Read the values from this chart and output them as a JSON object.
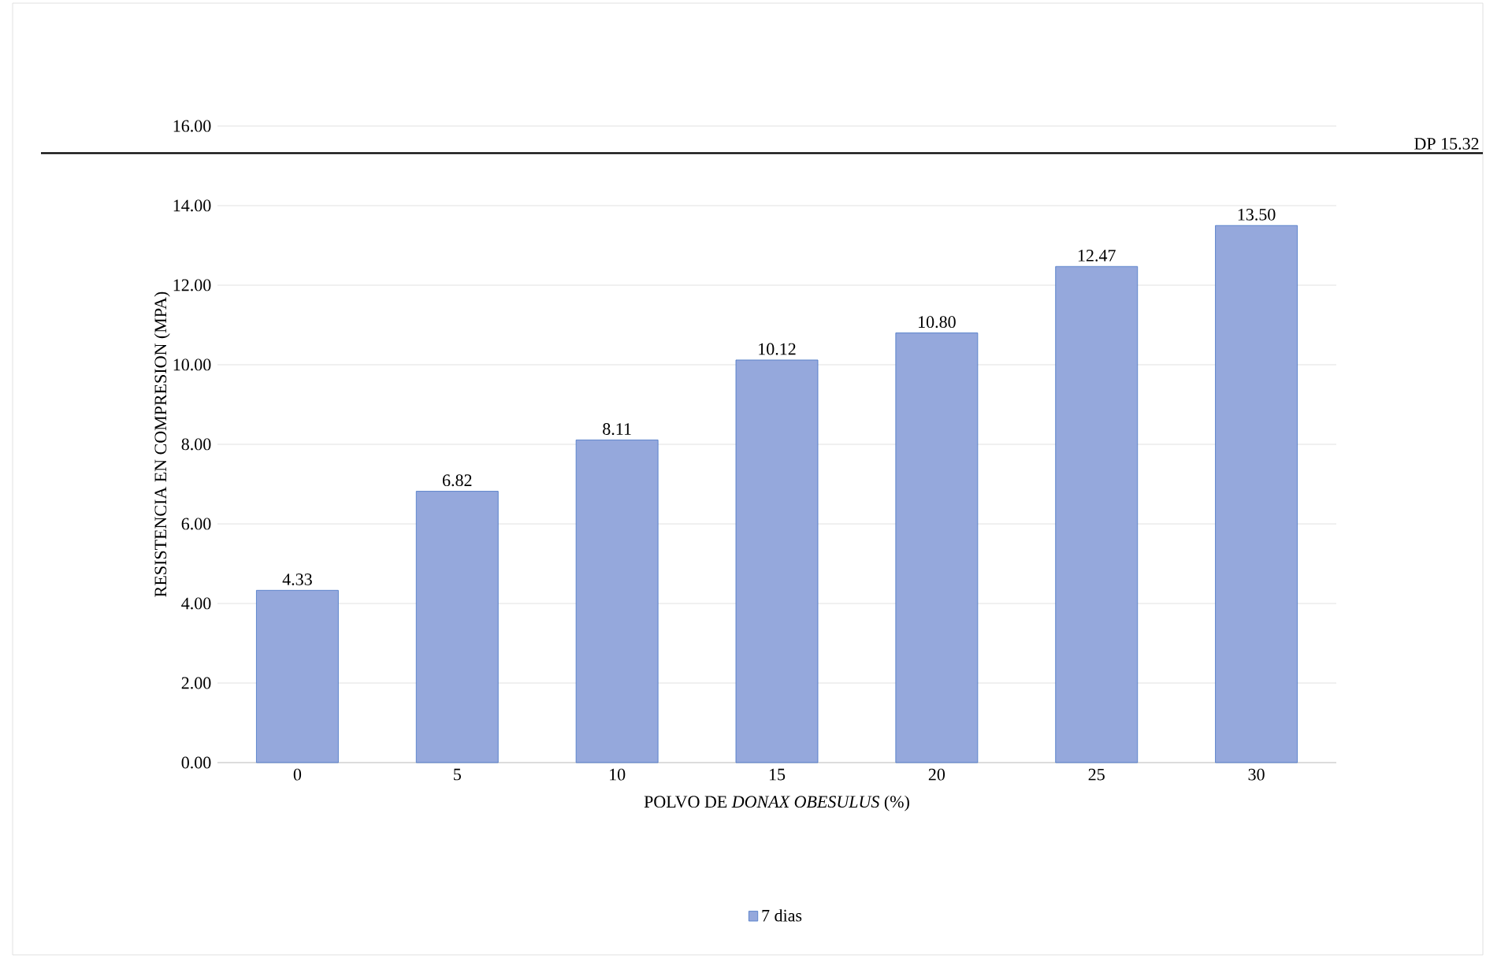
{
  "chart_data": {
    "type": "bar",
    "xlabel": "POLVO DE *DONAX OBESULUS* (%)",
    "ylabel": "RESISTENCIA EN COMPRESION (MPA)",
    "categories": [
      "0",
      "5",
      "10",
      "15",
      "20",
      "25",
      "30"
    ],
    "series": [
      {
        "name": "7 dias",
        "color": "#95a8dc",
        "values": [
          4.33,
          6.82,
          8.11,
          10.12,
          10.8,
          12.47,
          13.5
        ]
      }
    ],
    "value_labels": [
      "4.33",
      "6.82",
      "8.11",
      "10.12",
      "10.80",
      "12.47",
      "13.50"
    ],
    "ylim": [
      0,
      16
    ],
    "yticks": [
      {
        "value": 0,
        "label": "0.00"
      },
      {
        "value": 2,
        "label": "2.00"
      },
      {
        "value": 4,
        "label": "4.00"
      },
      {
        "value": 6,
        "label": "6.00"
      },
      {
        "value": 8,
        "label": "8.00"
      },
      {
        "value": 10,
        "label": "10.00"
      },
      {
        "value": 12,
        "label": "12.00"
      },
      {
        "value": 14,
        "label": "14.00"
      },
      {
        "value": 16,
        "label": "16.00"
      }
    ],
    "ref_lines": [
      {
        "axis": "y",
        "value": 15.32,
        "label": "DP 15.32",
        "color": "#000000"
      }
    ],
    "grid": "y",
    "legend": "bottom"
  }
}
